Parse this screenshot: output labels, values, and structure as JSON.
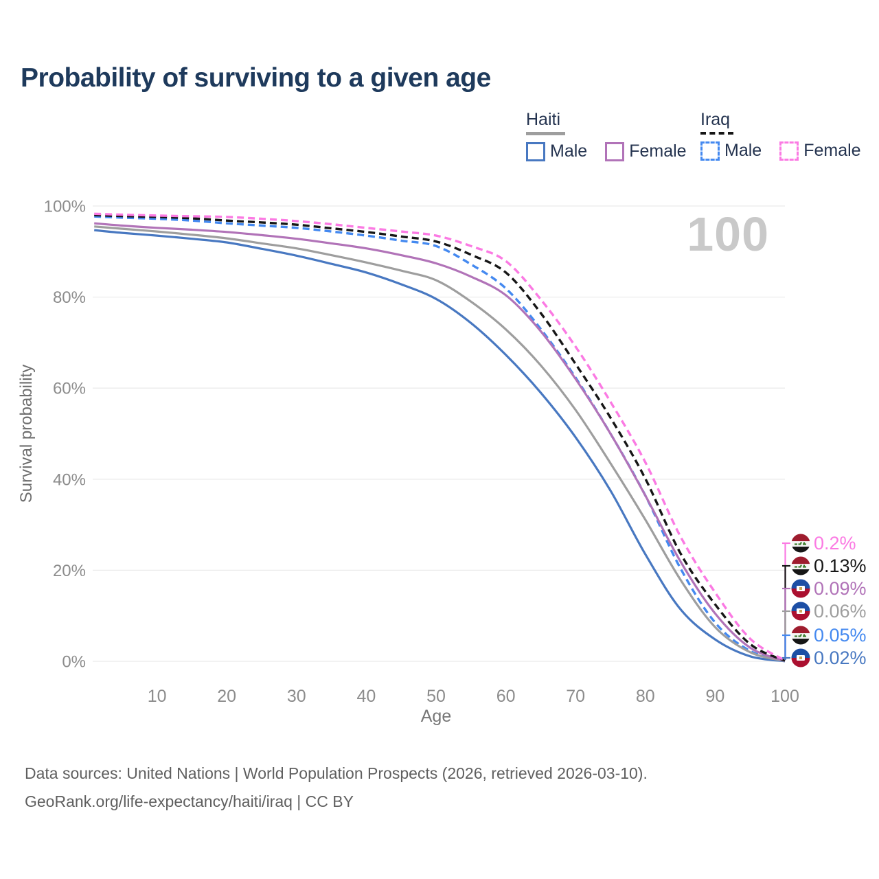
{
  "title": "Probability of surviving to a given age",
  "watermark": "100",
  "legend": {
    "groups": [
      {
        "name": "Haiti",
        "line_style": "solid",
        "line_color": "#9e9e9e",
        "items": [
          {
            "label": "Male",
            "color": "#4878c1"
          },
          {
            "label": "Female",
            "color": "#b173b8"
          }
        ]
      },
      {
        "name": "Iraq",
        "line_style": "dashed",
        "line_color": "#161616",
        "items": [
          {
            "label": "Male",
            "color": "#4489f0"
          },
          {
            "label": "Female",
            "color": "#fb7ae3"
          }
        ]
      }
    ]
  },
  "chart_data": {
    "type": "line",
    "title": "Probability of surviving to a given age",
    "xlabel": "Age",
    "ylabel": "Survival probability",
    "xlim": [
      0,
      100
    ],
    "ylim": [
      0,
      100
    ],
    "grid": "horizontal",
    "legend_position": "top-right",
    "x_ticks": [
      10,
      20,
      30,
      40,
      50,
      60,
      70,
      80,
      90,
      100
    ],
    "y_ticks": [
      {
        "value": 0,
        "label": "0%"
      },
      {
        "value": 20,
        "label": "20%"
      },
      {
        "value": 40,
        "label": "40%"
      },
      {
        "value": 60,
        "label": "60%"
      },
      {
        "value": 80,
        "label": "80%"
      },
      {
        "value": 100,
        "label": "100%"
      }
    ],
    "x": [
      1,
      5,
      10,
      15,
      20,
      25,
      30,
      35,
      40,
      45,
      50,
      55,
      60,
      65,
      70,
      75,
      80,
      85,
      90,
      95,
      100
    ],
    "series": [
      {
        "name": "Iraq Female",
        "country": "Iraq",
        "sex": "Female",
        "color": "#fb7ae3",
        "dashed": true,
        "end_label": "0.2%",
        "values": [
          98.3,
          98.1,
          97.9,
          97.75,
          97.6,
          97.2,
          96.7,
          96.0,
          95.2,
          94.4,
          93.5,
          91.2,
          87.9,
          79.5,
          69.1,
          57.0,
          43.7,
          27.5,
          15.1,
          5.0,
          0.2
        ]
      },
      {
        "name": "Iraq Both sexes",
        "country": "Iraq",
        "sex": "Both",
        "color": "#161616",
        "dashed": true,
        "end_label": "0.13%",
        "values": [
          98.0,
          97.8,
          97.6,
          97.3,
          96.8,
          96.4,
          95.9,
          95.1,
          94.3,
          93.3,
          92.2,
          89.3,
          85.4,
          76.5,
          65.3,
          53.5,
          40.1,
          23.8,
          12.5,
          3.8,
          0.13
        ]
      },
      {
        "name": "Haiti Female",
        "country": "Haiti",
        "sex": "Female",
        "color": "#b173b8",
        "dashed": false,
        "end_label": "0.09%",
        "values": [
          96.2,
          95.7,
          95.2,
          94.8,
          94.3,
          93.6,
          92.8,
          91.8,
          90.7,
          89.2,
          87.4,
          84.5,
          80.4,
          72.5,
          62.0,
          50.0,
          36.4,
          22.0,
          10.5,
          3.0,
          0.09
        ]
      },
      {
        "name": "Haiti Both sexes",
        "country": "Haiti",
        "sex": "Both",
        "color": "#9e9e9e",
        "dashed": false,
        "end_label": "0.06%",
        "values": [
          95.5,
          95.0,
          94.4,
          93.7,
          92.9,
          91.8,
          90.7,
          89.2,
          87.6,
          85.8,
          83.7,
          79.0,
          72.9,
          65.0,
          55.2,
          43.5,
          31.1,
          18.0,
          7.5,
          2.0,
          0.06
        ]
      },
      {
        "name": "Iraq Male",
        "country": "Iraq",
        "sex": "Male",
        "color": "#4489f0",
        "dashed": true,
        "end_label": "0.05%",
        "values": [
          97.7,
          97.45,
          97.2,
          96.8,
          96.2,
          95.7,
          95.2,
          94.4,
          93.5,
          92.4,
          91.2,
          87.2,
          81.9,
          73.0,
          62.3,
          50.0,
          36.4,
          20.5,
          8.5,
          2.3,
          0.05
        ]
      },
      {
        "name": "Haiti Male",
        "country": "Haiti",
        "sex": "Male",
        "color": "#4878c1",
        "dashed": false,
        "end_label": "0.02%",
        "values": [
          94.7,
          94.1,
          93.5,
          92.8,
          92.0,
          90.6,
          89.1,
          87.3,
          85.4,
          82.8,
          79.6,
          74.3,
          67.3,
          59.0,
          49.2,
          37.5,
          23.5,
          11.5,
          4.8,
          1.1,
          0.02
        ]
      }
    ]
  },
  "footer": {
    "line1": "Data sources: United Nations | World Population Prospects (2026, retrieved 2026-03-10).",
    "line2": "GeoRank.org/life-expectancy/haiti/iraq | CC BY"
  }
}
